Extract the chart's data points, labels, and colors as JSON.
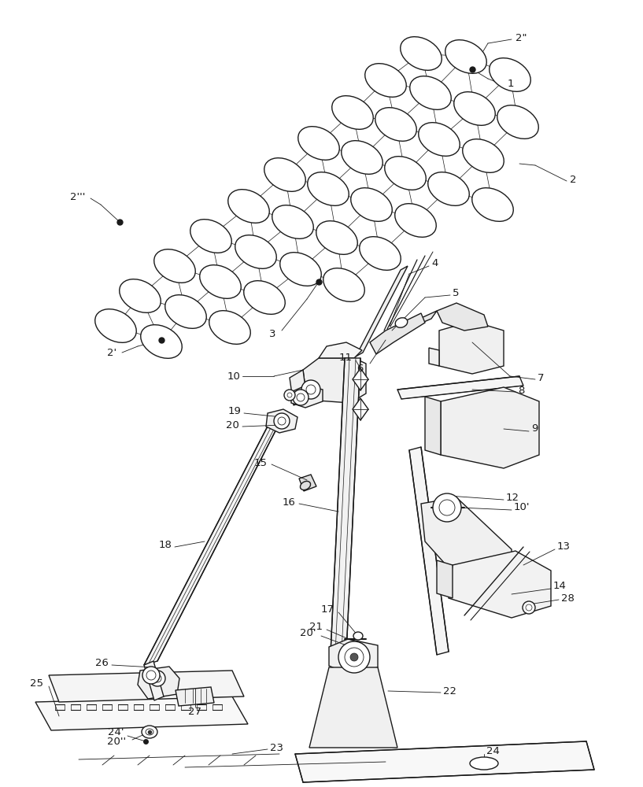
{
  "background": "#ffffff",
  "line_color": "#1a1a1a",
  "lw": 1.0,
  "tlw": 0.6,
  "fs": 9.5,
  "panels": [
    [
      535,
      68,
      28,
      19,
      -28
    ],
    [
      592,
      72,
      28,
      19,
      -28
    ],
    [
      648,
      95,
      28,
      19,
      -28
    ],
    [
      490,
      102,
      28,
      19,
      -28
    ],
    [
      547,
      118,
      28,
      19,
      -28
    ],
    [
      603,
      138,
      28,
      19,
      -28
    ],
    [
      658,
      155,
      28,
      19,
      -28
    ],
    [
      448,
      143,
      28,
      19,
      -28
    ],
    [
      503,
      158,
      28,
      19,
      -28
    ],
    [
      558,
      177,
      28,
      19,
      -28
    ],
    [
      614,
      198,
      28,
      19,
      -28
    ],
    [
      405,
      182,
      28,
      19,
      -28
    ],
    [
      460,
      200,
      28,
      19,
      -28
    ],
    [
      515,
      220,
      28,
      19,
      -28
    ],
    [
      570,
      240,
      28,
      19,
      -28
    ],
    [
      626,
      260,
      28,
      19,
      -28
    ],
    [
      362,
      222,
      28,
      19,
      -28
    ],
    [
      417,
      240,
      28,
      19,
      -28
    ],
    [
      472,
      260,
      28,
      19,
      -28
    ],
    [
      528,
      280,
      28,
      19,
      -28
    ],
    [
      316,
      262,
      28,
      19,
      -28
    ],
    [
      372,
      282,
      28,
      19,
      -28
    ],
    [
      428,
      302,
      28,
      19,
      -28
    ],
    [
      483,
      322,
      28,
      19,
      -28
    ],
    [
      268,
      300,
      28,
      19,
      -28
    ],
    [
      325,
      320,
      28,
      19,
      -28
    ],
    [
      382,
      342,
      28,
      19,
      -28
    ],
    [
      437,
      362,
      28,
      19,
      -28
    ],
    [
      222,
      338,
      28,
      19,
      -28
    ],
    [
      280,
      358,
      28,
      19,
      -28
    ],
    [
      336,
      378,
      28,
      19,
      -28
    ],
    [
      178,
      376,
      28,
      19,
      -28
    ],
    [
      236,
      396,
      28,
      19,
      -28
    ],
    [
      292,
      416,
      28,
      19,
      -28
    ],
    [
      147,
      414,
      28,
      19,
      -28
    ],
    [
      205,
      434,
      28,
      19,
      -28
    ]
  ]
}
